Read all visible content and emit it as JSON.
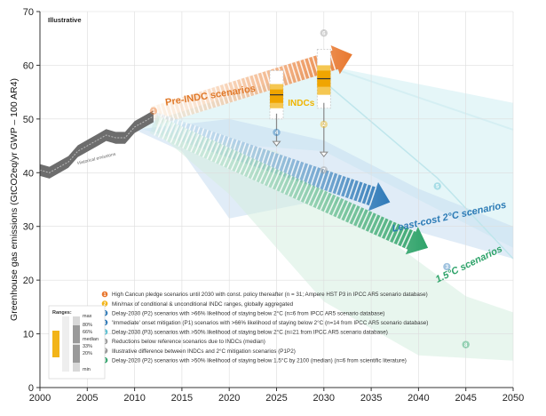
{
  "chart_data": {
    "type": "line",
    "xlabel": "",
    "ylabel": "Greenhouse gas emissions (GtCO2eq/yr GWP – 100 AR4)",
    "xlim": [
      2000,
      2050
    ],
    "ylim": [
      0,
      70
    ],
    "x_ticks": [
      "2000",
      "2005",
      "2010",
      "2015",
      "2020",
      "2025",
      "2030",
      "2035",
      "2040",
      "2045",
      "2050"
    ],
    "y_ticks": [
      "0",
      "10",
      "20",
      "30",
      "40",
      "50",
      "60",
      "70"
    ],
    "corner_label": "Illustrative",
    "historical": {
      "label": "Historical emissions",
      "x": [
        2000,
        2001,
        2002,
        2003,
        2004,
        2005,
        2006,
        2007,
        2008,
        2009,
        2010,
        2011,
        2012
      ],
      "y": [
        40.5,
        40,
        41,
        42,
        44,
        45,
        46,
        47,
        46.5,
        46.5,
        48.5,
        49.5,
        50.5
      ]
    },
    "arrows": [
      {
        "id": "pre-indc",
        "label": "Pre-INDC scenarios",
        "color": "#e8772e",
        "x": [
          2012,
          2033
        ],
        "y": [
          50.5,
          62
        ]
      },
      {
        "id": "least-cost-2c",
        "label": "Least-cost 2°C scenarios",
        "color": "#2f7ab8",
        "x": [
          2012,
          2037
        ],
        "y": [
          49.5,
          34.5
        ]
      },
      {
        "id": "1-5c",
        "label": "1.5°C scenarios",
        "color": "#2fa36a",
        "x": [
          2012,
          2041
        ],
        "y": [
          49,
          26
        ]
      }
    ],
    "indc_label": "INDCs",
    "indc_ranges": [
      {
        "year": 2025,
        "min": 51,
        "p20": 52,
        "p33": 53,
        "median": 54.5,
        "p66": 55.5,
        "p80": 56.5,
        "max": 58
      },
      {
        "year": 2030,
        "min": 53,
        "p20": 54.5,
        "p33": 56,
        "median": 57.5,
        "p66": 59,
        "p80": 60,
        "max": 62
      }
    ],
    "reductions_2030": [
      {
        "year": 2025,
        "from": 51,
        "to": 45
      },
      {
        "year": 2030,
        "from": 53,
        "to": 43
      }
    ],
    "legend": [
      {
        "n": "1",
        "color": "#e8772e",
        "text": "High Cancun pledge scenarios until 2030 with const. policy thereafter (n = 31; Ampere HST P3 in IPCC AR5 scenario database)"
      },
      {
        "n": "2",
        "color": "#f2b418",
        "text": "Min/max of conditional & unconditional INDC ranges, globally aggregated"
      },
      {
        "n": "3",
        "color": "#2f7ab8",
        "text": "Delay-2030 (P2) scenarios with >66% likelihood of staying below 2°C (n=6 from IPCC AR5 scenario database)"
      },
      {
        "n": "4",
        "color": "#2f7ab8",
        "text": "'Immediate' onset mitigation (P1) scenarios with >66% likelihood of staying below 2°C (n=14 from IPCC AR5 scenario database)"
      },
      {
        "n": "5",
        "color": "#5bbfd1",
        "text": "Delay-2030 (P3) scenarios with >50% likelihood of staying below 2°C (n=21 from IPCC AR5 scenario database)"
      },
      {
        "n": "6",
        "color": "#9a9a9a",
        "text": "Reductions below reference scenarios due to INDCs (median)"
      },
      {
        "n": "7",
        "color": "#9a9a9a",
        "text": "Illustrative difference between INDCs and 2°C mitigation scenarios (P1P2)"
      },
      {
        "n": "8",
        "color": "#2fa36a",
        "text": "Delay-2020 (P2) scenarios with >50% likelihood of staying below 1.5°C by 2100 (median) (n=6 from scientific literature)"
      }
    ],
    "ranges_key": {
      "title": "Ranges:",
      "labels": [
        "max",
        "80%",
        "66%",
        "median",
        "33%",
        "20%",
        "min"
      ]
    },
    "markers": [
      {
        "n": "1",
        "x": 2012,
        "y": 51.5
      },
      {
        "n": "2",
        "x": 2030,
        "y": 49
      },
      {
        "n": "3",
        "x": 2043,
        "y": 22.5
      },
      {
        "n": "4",
        "x": 2025,
        "y": 47.5
      },
      {
        "n": "5",
        "x": 2042,
        "y": 37.5
      },
      {
        "n": "6",
        "x": 2030,
        "y": 66
      },
      {
        "n": "7",
        "x": 2030,
        "y": 40.5
      },
      {
        "n": "8",
        "x": 2045,
        "y": 8
      }
    ],
    "colors": {
      "orange": "#e8772e",
      "gold": "#f2b418",
      "blue": "#2f7ab8",
      "cyan": "#5bbfd1",
      "green": "#2fa36a",
      "gray": "#888888"
    }
  }
}
